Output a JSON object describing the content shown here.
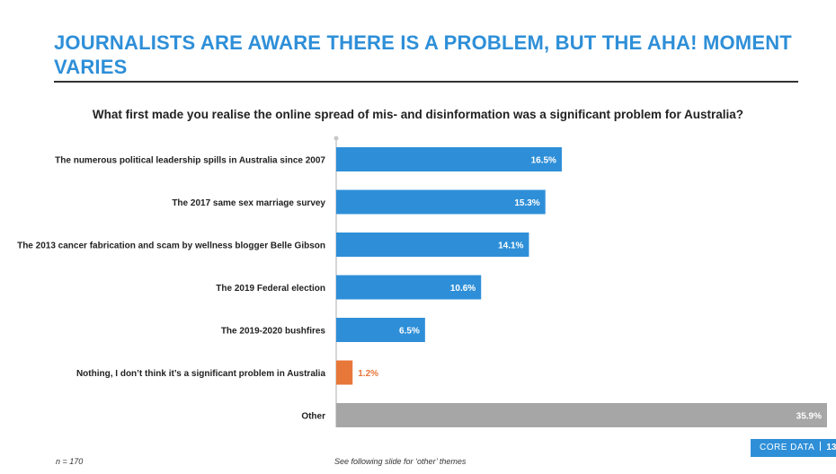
{
  "slide": {
    "title": "JOURNALISTS ARE AWARE THERE IS A PROBLEM, BUT THE AHA! MOMENT VARIES",
    "question": "What first made you realise the online spread of mis- and disinformation was a significant problem for Australia?",
    "sample_note": "n = 170",
    "other_note": "See following slide for ‘other’ themes",
    "brand": "CORE DATA",
    "page_number": "13"
  },
  "colors": {
    "title": "#2e8fd8",
    "bar_blue": "#2e8fd8",
    "bar_orange": "#e8773a",
    "bar_gray": "#a6a6a6"
  },
  "chart_data": {
    "type": "bar",
    "orientation": "horizontal",
    "title": "What first made you realise the online spread of mis- and disinformation was a significant problem for Australia?",
    "categories": [
      "The numerous political leadership spills in Australia since 2007",
      "The 2017 same sex marriage survey",
      "The 2013 cancer fabrication and scam by wellness blogger Belle Gibson",
      "The 2019 Federal election",
      "The 2019-2020 bushfires",
      "Nothing, I don’t think it’s a significant problem in Australia",
      "Other"
    ],
    "values": [
      16.5,
      15.3,
      14.1,
      10.6,
      6.5,
      1.2,
      35.9
    ],
    "value_labels": [
      "16.5%",
      "15.3%",
      "14.1%",
      "10.6%",
      "6.5%",
      "1.2%",
      "35.9%"
    ],
    "bar_colors": [
      "#2e8fd8",
      "#2e8fd8",
      "#2e8fd8",
      "#2e8fd8",
      "#2e8fd8",
      "#e8773a",
      "#a6a6a6"
    ],
    "xlim": [
      0,
      35.9
    ],
    "grid": false,
    "legend": "none"
  }
}
